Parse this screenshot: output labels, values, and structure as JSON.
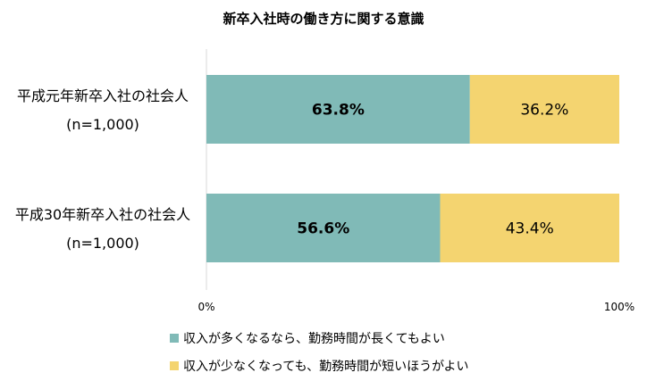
{
  "chart_data": {
    "type": "bar",
    "orientation": "horizontal",
    "stacked": true,
    "title": "新卒入社時の働き方に関する意識",
    "categories": [
      [
        "平成元年新卒入社の社会人",
        "(n=1,000)"
      ],
      [
        "平成30年新卒入社の社会人",
        "(n=1,000)"
      ]
    ],
    "series": [
      {
        "name": "収入が多くなるなら、勤務時間が長くてもよい",
        "values": [
          63.8,
          56.6
        ],
        "labels": [
          "63.8%",
          "56.6%"
        ],
        "color": "#80bab7",
        "label_bold": true
      },
      {
        "name": "収入が少なくなっても、勤務時間が短いほうがよい",
        "values": [
          36.2,
          43.4
        ],
        "labels": [
          "36.2%",
          "43.4%"
        ],
        "color": "#f4d470",
        "label_bold": false
      }
    ],
    "xlim": [
      0,
      100
    ],
    "x_ticks": [
      "0%",
      "100%"
    ],
    "grid": false,
    "legend_position": "bottom"
  }
}
